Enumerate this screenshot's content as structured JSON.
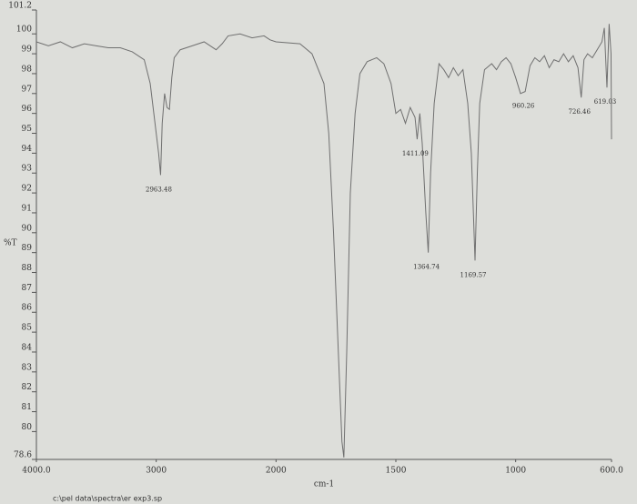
{
  "chart_data": {
    "type": "line",
    "y_label": "%T",
    "x_label": "cm-1",
    "footer": "c:\\pel data\\spectra\\er exp3.sp",
    "xlim": [
      4000,
      600
    ],
    "x_scale_break": 2000,
    "xticks": [
      {
        "value": 4000,
        "label": "4000.0"
      },
      3000,
      2000,
      1500,
      1000,
      {
        "value": 600,
        "label": "600.0"
      }
    ],
    "ylim": [
      78.6,
      101.2
    ],
    "yticks": [
      78.6,
      80,
      81,
      82,
      83,
      84,
      85,
      86,
      87,
      88,
      89,
      90,
      91,
      92,
      93,
      94,
      95,
      96,
      97,
      98,
      99,
      100,
      101.2
    ],
    "color": "#707070",
    "grid": false,
    "x": [
      4000,
      3900,
      3800,
      3700,
      3600,
      3500,
      3400,
      3300,
      3200,
      3100,
      3050,
      3000,
      2980,
      2963.48,
      2950,
      2930,
      2910,
      2890,
      2870,
      2850,
      2800,
      2700,
      2600,
      2500,
      2450,
      2400,
      2300,
      2200,
      2100,
      2050,
      2000,
      1900,
      1850,
      1800,
      1780,
      1760,
      1740,
      1725,
      1717,
      1705,
      1690,
      1670,
      1650,
      1620,
      1580,
      1550,
      1520,
      1500,
      1480,
      1460,
      1440,
      1420,
      1411.09,
      1400,
      1390,
      1375,
      1364.74,
      1355,
      1340,
      1320,
      1300,
      1280,
      1260,
      1240,
      1220,
      1200,
      1185,
      1169.57,
      1160,
      1150,
      1130,
      1100,
      1080,
      1060,
      1040,
      1020,
      1000,
      980,
      960.26,
      940,
      920,
      900,
      880,
      860,
      840,
      820,
      800,
      780,
      760,
      740,
      726.46,
      715,
      700,
      680,
      660,
      640,
      630,
      619.03,
      610,
      602,
      600
    ],
    "values": [
      99.6,
      99.4,
      99.6,
      99.3,
      99.5,
      99.4,
      99.3,
      99.3,
      99.1,
      98.7,
      97.5,
      95,
      94,
      92.9,
      95.5,
      97,
      96.3,
      96.2,
      97.8,
      98.8,
      99.2,
      99.4,
      99.6,
      99.2,
      99.5,
      99.9,
      100,
      99.8,
      99.9,
      99.7,
      99.6,
      99.5,
      99,
      97.5,
      95,
      90,
      84,
      79.5,
      78.7,
      84,
      92,
      96,
      98,
      98.6,
      98.8,
      98.5,
      97.5,
      96,
      96.2,
      95.5,
      96.3,
      95.8,
      94.7,
      96,
      94.5,
      91,
      89,
      93,
      96.5,
      98.5,
      98.2,
      97.8,
      98.3,
      97.9,
      98.2,
      96.5,
      94,
      88.6,
      93,
      96.5,
      98.2,
      98.5,
      98.2,
      98.6,
      98.8,
      98.5,
      97.8,
      97,
      97.1,
      98.4,
      98.8,
      98.6,
      98.9,
      98.3,
      98.7,
      98.6,
      99,
      98.6,
      98.9,
      98.3,
      96.8,
      98.7,
      99,
      98.8,
      99.2,
      99.6,
      100.3,
      97.3,
      100.5,
      99,
      94.7
    ],
    "annotations": [
      {
        "label": "2963.48",
        "x": 2963.48,
        "y": 92.9
      },
      {
        "label": "1411.09",
        "x": 1411.09,
        "y": 94.7
      },
      {
        "label": "1364.74",
        "x": 1364.74,
        "y": 89
      },
      {
        "label": "1169.57",
        "x": 1169.57,
        "y": 88.6
      },
      {
        "label": "960.26",
        "x": 960.26,
        "y": 97.1
      },
      {
        "label": "726.46",
        "x": 726.46,
        "y": 96.8
      },
      {
        "label": "619.03",
        "x": 619.03,
        "y": 97.3
      }
    ]
  }
}
